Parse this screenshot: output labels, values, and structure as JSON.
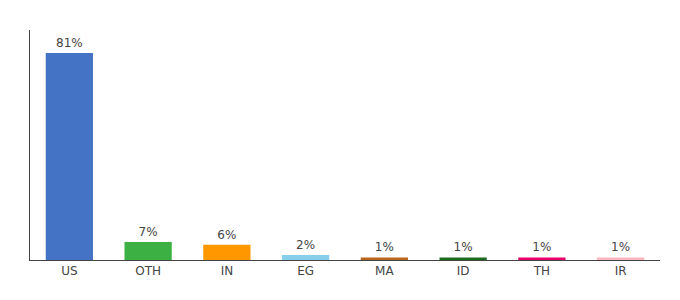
{
  "chart_data": {
    "type": "bar",
    "categories": [
      "US",
      "OTH",
      "IN",
      "EG",
      "MA",
      "ID",
      "TH",
      "IR"
    ],
    "values": [
      81,
      7,
      6,
      2,
      1,
      1,
      1,
      1
    ],
    "value_labels": [
      "81%",
      "7%",
      "6%",
      "2%",
      "1%",
      "1%",
      "1%",
      "1%"
    ],
    "colors": [
      "#4472C4",
      "#3CB043",
      "#FF9800",
      "#87CEEB",
      "#B8651A",
      "#1A6B1A",
      "#E8006A",
      "#FFB6C1"
    ],
    "ylim": [
      0,
      90
    ],
    "grid": false,
    "data_labels": true,
    "tick_labels": "x"
  }
}
